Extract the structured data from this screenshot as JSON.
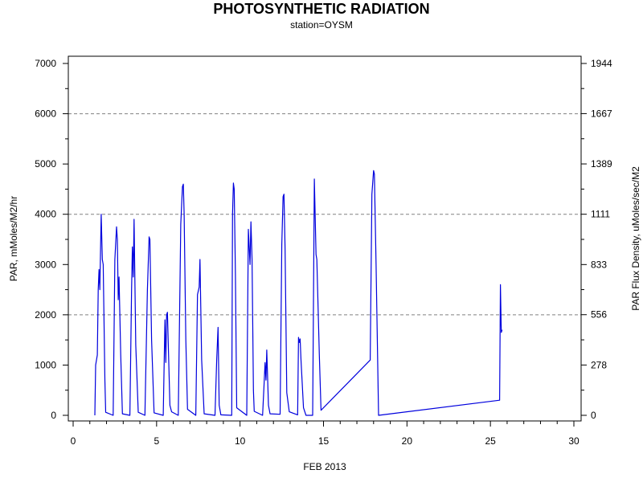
{
  "chart_data": {
    "type": "line",
    "title": "PHOTOSYNTHETIC RADIATION",
    "subtitle": "station=OYSM",
    "xlabel": "FEB 2013",
    "ylabel": "PAR, mMoles/M2/hr",
    "ylabel_right": "PAR Flux Density, uMoles/sec/M2",
    "xlim": [
      0,
      30
    ],
    "ylim": [
      -150,
      7150
    ],
    "x_ticks": [
      0,
      5,
      10,
      15,
      20,
      25,
      30
    ],
    "x_tick_labels": [
      "0",
      "5",
      "10",
      "15",
      "20",
      "25",
      "30"
    ],
    "y_ticks": [
      0,
      1000,
      2000,
      3000,
      4000,
      5000,
      6000,
      7000
    ],
    "y_tick_labels": [
      "0",
      "1000",
      "2000",
      "3000",
      "4000",
      "5000",
      "6000",
      "7000"
    ],
    "y_right_ticks": [
      0,
      278,
      556,
      833,
      1111,
      1389,
      1667,
      1944
    ],
    "y_right_tick_labels": [
      "0",
      "278",
      "556",
      "833",
      "1111",
      "1389",
      "1667",
      "1944"
    ],
    "grid": "horizontal dashed at y = 2000, 4000, 6000",
    "colors": {
      "series": "#0000dd",
      "grid": "#808080",
      "axis": "#000000"
    },
    "series": [
      {
        "points": [
          [
            1.3,
            0
          ],
          [
            1.35,
            1000
          ],
          [
            1.45,
            1200
          ],
          [
            1.5,
            2500
          ],
          [
            1.55,
            2900
          ],
          [
            1.6,
            2500
          ],
          [
            1.68,
            4000
          ],
          [
            1.75,
            3100
          ],
          [
            1.8,
            3000
          ],
          [
            1.9,
            700
          ],
          [
            1.95,
            60
          ],
          [
            2.4,
            0
          ],
          [
            2.5,
            3100
          ],
          [
            2.6,
            3750
          ],
          [
            2.65,
            3500
          ],
          [
            2.7,
            2300
          ],
          [
            2.75,
            2750
          ],
          [
            2.85,
            1200
          ],
          [
            2.95,
            30
          ],
          [
            3.4,
            0
          ],
          [
            3.5,
            2500
          ],
          [
            3.55,
            3350
          ],
          [
            3.6,
            2750
          ],
          [
            3.65,
            3900
          ],
          [
            3.75,
            1400
          ],
          [
            3.9,
            60
          ],
          [
            4.3,
            0
          ],
          [
            4.45,
            2500
          ],
          [
            4.55,
            3550
          ],
          [
            4.6,
            3500
          ],
          [
            4.7,
            1500
          ],
          [
            4.85,
            50
          ],
          [
            5.4,
            0
          ],
          [
            5.5,
            1900
          ],
          [
            5.55,
            1050
          ],
          [
            5.6,
            2000
          ],
          [
            5.65,
            2050
          ],
          [
            5.8,
            200
          ],
          [
            5.9,
            70
          ],
          [
            6.3,
            0
          ],
          [
            6.45,
            3800
          ],
          [
            6.55,
            4550
          ],
          [
            6.6,
            4600
          ],
          [
            6.65,
            4000
          ],
          [
            6.75,
            1500
          ],
          [
            6.85,
            120
          ],
          [
            7.35,
            0
          ],
          [
            7.45,
            2400
          ],
          [
            7.55,
            2550
          ],
          [
            7.6,
            3100
          ],
          [
            7.7,
            1100
          ],
          [
            7.85,
            30
          ],
          [
            8.5,
            0
          ],
          [
            8.6,
            1100
          ],
          [
            8.68,
            1750
          ],
          [
            8.75,
            200
          ],
          [
            8.85,
            10
          ],
          [
            9.5,
            0
          ],
          [
            9.55,
            4000
          ],
          [
            9.6,
            4620
          ],
          [
            9.65,
            4500
          ],
          [
            9.72,
            2800
          ],
          [
            9.8,
            150
          ],
          [
            10.4,
            0
          ],
          [
            10.5,
            3700
          ],
          [
            10.6,
            3000
          ],
          [
            10.65,
            3850
          ],
          [
            10.72,
            3100
          ],
          [
            10.8,
            500
          ],
          [
            10.85,
            80
          ],
          [
            11.35,
            0
          ],
          [
            11.45,
            700
          ],
          [
            11.5,
            1050
          ],
          [
            11.55,
            700
          ],
          [
            11.6,
            1300
          ],
          [
            11.7,
            200
          ],
          [
            11.8,
            30
          ],
          [
            12.4,
            20
          ],
          [
            12.5,
            3400
          ],
          [
            12.58,
            4350
          ],
          [
            12.63,
            4400
          ],
          [
            12.7,
            3300
          ],
          [
            12.8,
            450
          ],
          [
            12.95,
            70
          ],
          [
            13.45,
            10
          ],
          [
            13.5,
            1550
          ],
          [
            13.55,
            1450
          ],
          [
            13.6,
            1520
          ],
          [
            13.65,
            1100
          ],
          [
            13.8,
            150
          ],
          [
            13.95,
            0
          ],
          [
            14.35,
            0
          ],
          [
            14.45,
            4700
          ],
          [
            14.55,
            3200
          ],
          [
            14.6,
            3100
          ],
          [
            14.75,
            1200
          ],
          [
            14.85,
            100
          ],
          [
            17.8,
            1100
          ],
          [
            17.9,
            4400
          ],
          [
            18.0,
            4870
          ],
          [
            18.05,
            4800
          ],
          [
            18.15,
            3000
          ],
          [
            18.3,
            0
          ],
          [
            25.55,
            300
          ],
          [
            25.6,
            2600
          ],
          [
            25.65,
            1650
          ],
          [
            25.7,
            1700
          ]
        ]
      }
    ]
  }
}
